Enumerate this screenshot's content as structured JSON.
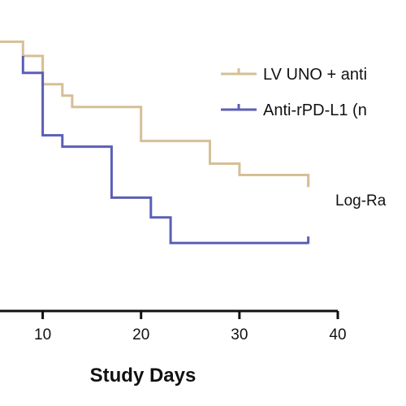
{
  "chart_data": {
    "type": "line",
    "step": true,
    "xlabel": "Study Days",
    "xlim": [
      5,
      40
    ],
    "ylim": [
      0,
      100
    ],
    "x_ticks": [
      10,
      20,
      30,
      40
    ],
    "x_tick_labels": [
      "10",
      "20",
      "30",
      "40"
    ],
    "grid": false,
    "legend_position": "top-right",
    "series": [
      {
        "name": "LV UNO + anti",
        "color": "#d6bf96",
        "marker": "tick",
        "x": [
          5,
          8,
          8,
          10,
          10,
          12,
          12,
          13,
          13,
          20,
          20,
          27,
          27,
          30,
          30,
          37,
          37
        ],
        "y": [
          95,
          95,
          90,
          90,
          80,
          80,
          76,
          76,
          72,
          72,
          60,
          60,
          52,
          52,
          48,
          48,
          44
        ]
      },
      {
        "name": "Anti-rPD-L1 (n",
        "color": "#5b5fb5",
        "marker": "tick",
        "x": [
          8,
          8,
          10,
          10,
          12,
          12,
          17,
          17,
          21,
          21,
          23,
          23,
          37
        ],
        "y": [
          90,
          84,
          84,
          62,
          62,
          58,
          58,
          40,
          40,
          33,
          33,
          24,
          24
        ]
      }
    ],
    "annotations": [
      {
        "text": "Log-Ra"
      }
    ]
  }
}
